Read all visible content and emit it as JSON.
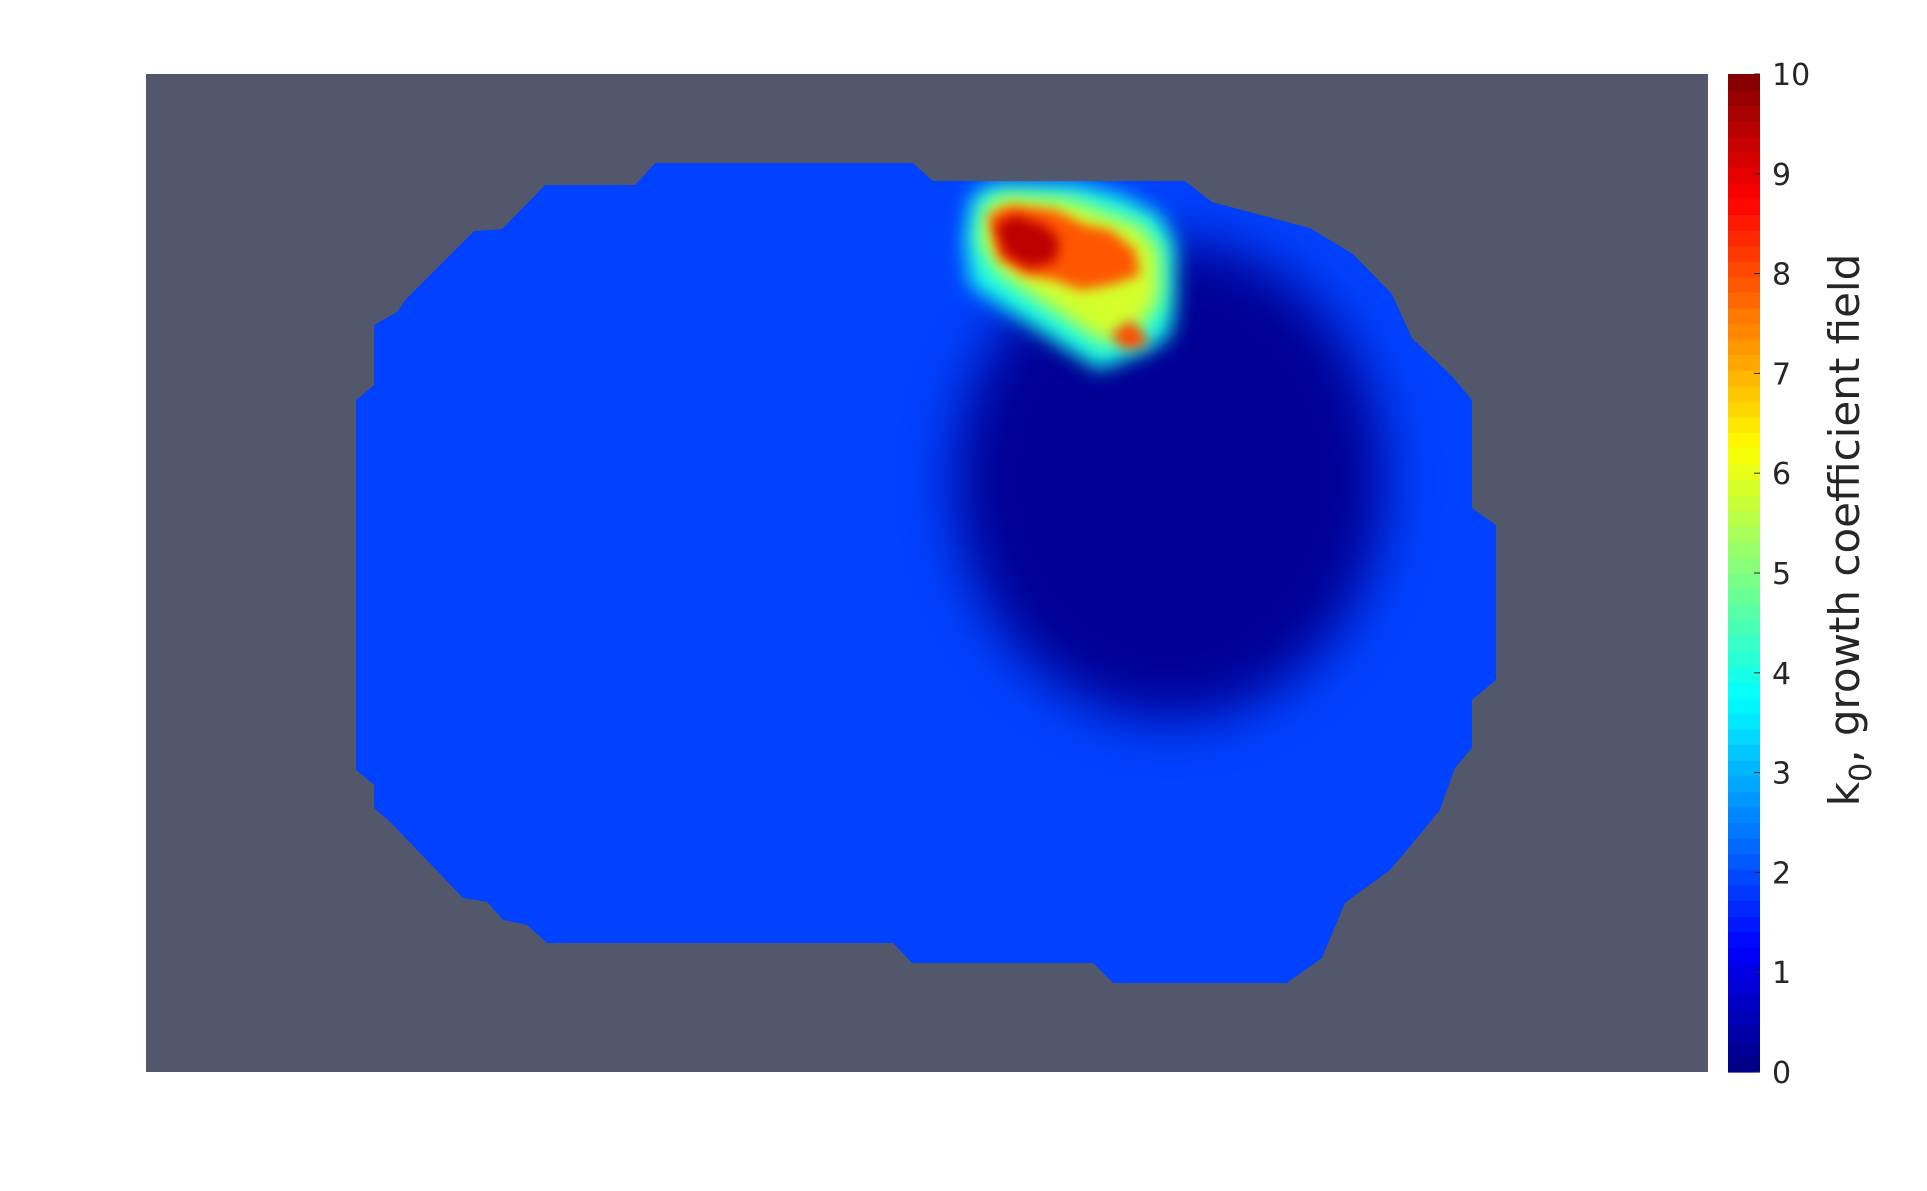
{
  "chart_data": {
    "type": "heatmap",
    "title": "",
    "xlabel": "",
    "ylabel": "",
    "background_color": "#53576b",
    "colormap": "jet",
    "colorbar": {
      "label_main": "k",
      "label_subscript": "0",
      "label_rest": ", growth coefficient field",
      "range": [
        0,
        10
      ],
      "ticks": [
        0,
        1,
        2,
        3,
        4,
        5,
        6,
        7,
        8,
        9,
        10
      ],
      "tick_labels": [
        "0",
        "1",
        "2",
        "3",
        "4",
        "5",
        "6",
        "7",
        "8",
        "9",
        "10"
      ],
      "placement": "right"
    },
    "field": {
      "background_value": 1.9,
      "low_region_value": 0.2,
      "hotspot_peak_value": 9.4,
      "secondary_hotspot_value": 8.0
    }
  }
}
